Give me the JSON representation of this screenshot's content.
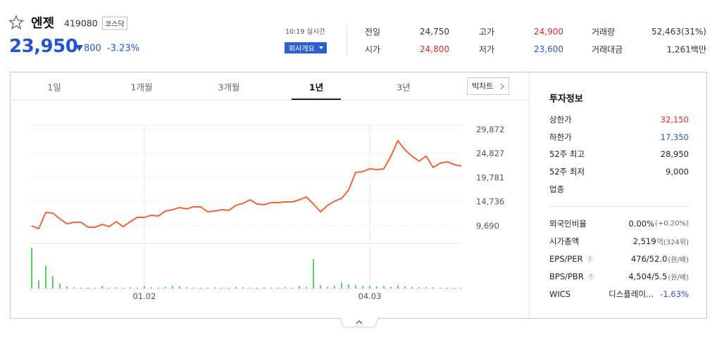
{
  "header": {
    "name": "엔젯",
    "code": "419080",
    "market": "코스닥",
    "price": "23,950",
    "change": "800",
    "change_rate": "-3.23%",
    "time": "10:19 실시간",
    "company_button": "회사개요"
  },
  "quote": [
    [
      {
        "label": "전일",
        "value": "24,750"
      },
      {
        "label": "고가",
        "value": "24,900",
        "color": "#e0282e"
      },
      {
        "label": "거래량",
        "value": "52,463(31%)"
      }
    ],
    [
      {
        "label": "시가",
        "value": "24,800",
        "color": "#e0282e"
      },
      {
        "label": "저가",
        "value": "23,600",
        "color": "#2456c9"
      },
      {
        "label": "거래대금",
        "value": "1,261백만"
      }
    ]
  ],
  "tabs": {
    "items": [
      "1일",
      "1개월",
      "3개월",
      "1년",
      "3년"
    ],
    "selected": 3,
    "big_chart": "빅차트"
  },
  "chart_data": {
    "type": "line",
    "categories": [
      null,
      null,
      null,
      null,
      null,
      null,
      null,
      null,
      null,
      null,
      null,
      null,
      null,
      null,
      null,
      null,
      "01.02",
      null,
      null,
      null,
      null,
      null,
      null,
      null,
      null,
      null,
      null,
      null,
      null,
      null,
      null,
      null,
      null,
      null,
      null,
      null,
      null,
      null,
      null,
      null,
      null,
      null,
      null,
      null,
      null,
      null,
      null,
      null,
      "04.03",
      null,
      null,
      null,
      null,
      null,
      null,
      null,
      null,
      null,
      null,
      null,
      null,
      null
    ],
    "values": [
      9690,
      9100,
      12480,
      12340,
      11160,
      10130,
      10430,
      10430,
      9400,
      9400,
      9980,
      9540,
      10570,
      9540,
      10570,
      11460,
      11460,
      11900,
      11750,
      12780,
      13070,
      13510,
      13220,
      13660,
      13660,
      12630,
      12780,
      13070,
      12930,
      13960,
      14400,
      15130,
      14250,
      14100,
      14540,
      14540,
      14690,
      14690,
      15130,
      15720,
      14250,
      12630,
      13960,
      14840,
      15430,
      17190,
      20870,
      21020,
      21610,
      21460,
      21610,
      24250,
      27490,
      25580,
      24250,
      23220,
      24250,
      21900,
      22780,
      23080,
      22490,
      22190
    ],
    "color": "#f0643c",
    "ylim": [
      6895,
      30726
    ],
    "yticks": [
      {
        "value": 9690,
        "label": "9,690"
      },
      {
        "value": 14736,
        "label": "14,736"
      },
      {
        "value": 19781,
        "label": "19,781"
      },
      {
        "value": 24827,
        "label": "24,827"
      },
      {
        "value": 29872,
        "label": "29,872"
      }
    ],
    "grid": true,
    "volume": {
      "type": "bar",
      "values": [
        100,
        20,
        55,
        30,
        12,
        5,
        3,
        2,
        2,
        2,
        6,
        2,
        3,
        2,
        3,
        2,
        6,
        3,
        2,
        4,
        6,
        5,
        3,
        2,
        2,
        2,
        3,
        2,
        2,
        4,
        3,
        2,
        2,
        3,
        2,
        2,
        3,
        2,
        6,
        4,
        72,
        8,
        4,
        6,
        14,
        10,
        8,
        5,
        6,
        5,
        6,
        4,
        8,
        5,
        4,
        3,
        3,
        3,
        2,
        2,
        2,
        2
      ],
      "ylim": [
        0,
        100
      ],
      "color": "#5bd16a"
    }
  },
  "info": {
    "title": "투자정보",
    "group1": [
      {
        "label": "상한가",
        "value": "32,150",
        "color": "#e0282e"
      },
      {
        "label": "하한가",
        "value": "17,350",
        "color": "#2456c9"
      },
      {
        "label": "52주 최고",
        "value": "28,950"
      },
      {
        "label": "52주 최저",
        "value": "9,000"
      },
      {
        "label": "업종"
      }
    ],
    "group2": [
      {
        "label": "외국인비율",
        "value": "0.00%",
        "note": "(+0.20%)"
      },
      {
        "label": "시가총액",
        "value": "2,519",
        "note": "억(324위)"
      },
      {
        "label": "EPS/PER",
        "help": "?",
        "value": "476/52.0",
        "note": "(원/배)"
      },
      {
        "label": "BPS/PBR",
        "help": "?",
        "value": "4,504/5.5",
        "note": "(원/배)"
      },
      {
        "label": "WICS",
        "value": "디스플레이...",
        "rate": "-1.63%",
        "color": "#2456c9"
      }
    ]
  }
}
